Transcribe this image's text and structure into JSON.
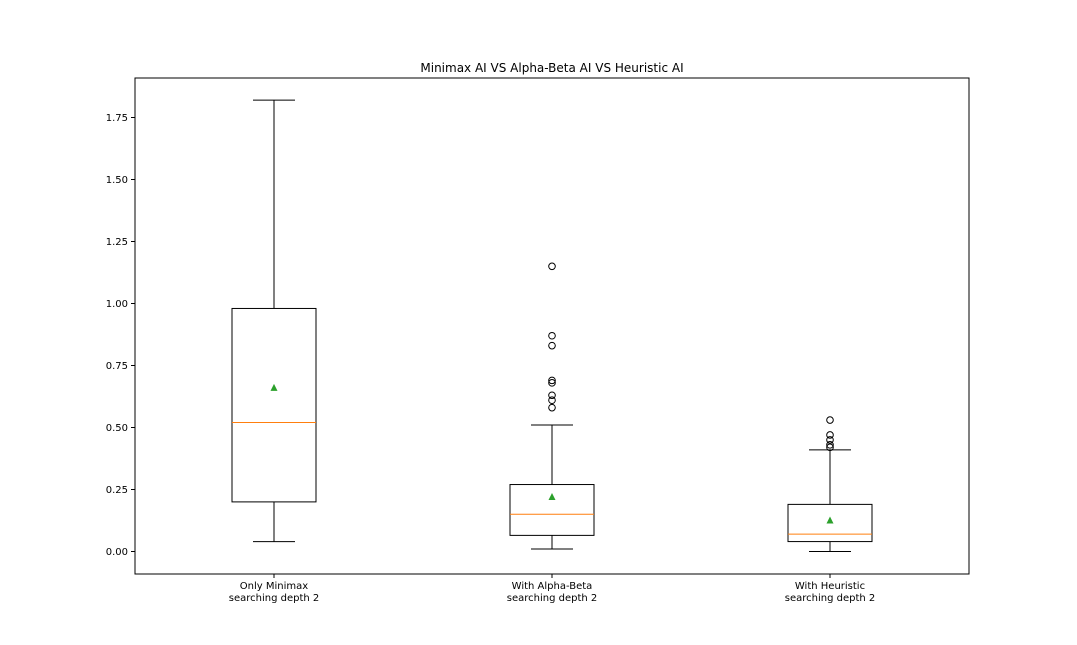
{
  "chart_data": {
    "type": "box",
    "title": "Minimax AI VS Alpha-Beta AI VS Heuristic AI",
    "xlabel": "",
    "ylabel": "",
    "ylim": [
      -0.09,
      1.9
    ],
    "yticks": [
      0.0,
      0.25,
      0.5,
      0.75,
      1.0,
      1.25,
      1.5,
      1.75
    ],
    "ytick_labels": [
      "0.00",
      "0.25",
      "0.50",
      "0.75",
      "1.00",
      "1.25",
      "1.50",
      "1.75"
    ],
    "grid": false,
    "showmeans": true,
    "colors": {
      "box": "#000000",
      "median": "#ff7f0e",
      "mean": "#2ca02c",
      "flier": "#000000"
    },
    "boxes": [
      {
        "label_lines": [
          "Only Minimax",
          "searching depth 2"
        ],
        "whisker_low": 0.04,
        "q1": 0.2,
        "median": 0.52,
        "q3": 0.98,
        "whisker_high": 1.82,
        "mean": 0.66,
        "fliers": []
      },
      {
        "label_lines": [
          "With Alpha-Beta",
          "searching depth 2"
        ],
        "whisker_low": 0.01,
        "q1": 0.065,
        "median": 0.15,
        "q3": 0.27,
        "whisker_high": 0.51,
        "mean": 0.22,
        "fliers": [
          0.58,
          0.61,
          0.63,
          0.68,
          0.69,
          0.83,
          0.87,
          1.15
        ]
      },
      {
        "label_lines": [
          "With Heuristic",
          "searching depth 2"
        ],
        "whisker_low": 0.0,
        "q1": 0.04,
        "median": 0.07,
        "q3": 0.19,
        "whisker_high": 0.41,
        "mean": 0.125,
        "fliers": [
          0.42,
          0.43,
          0.45,
          0.47,
          0.53
        ]
      }
    ]
  }
}
